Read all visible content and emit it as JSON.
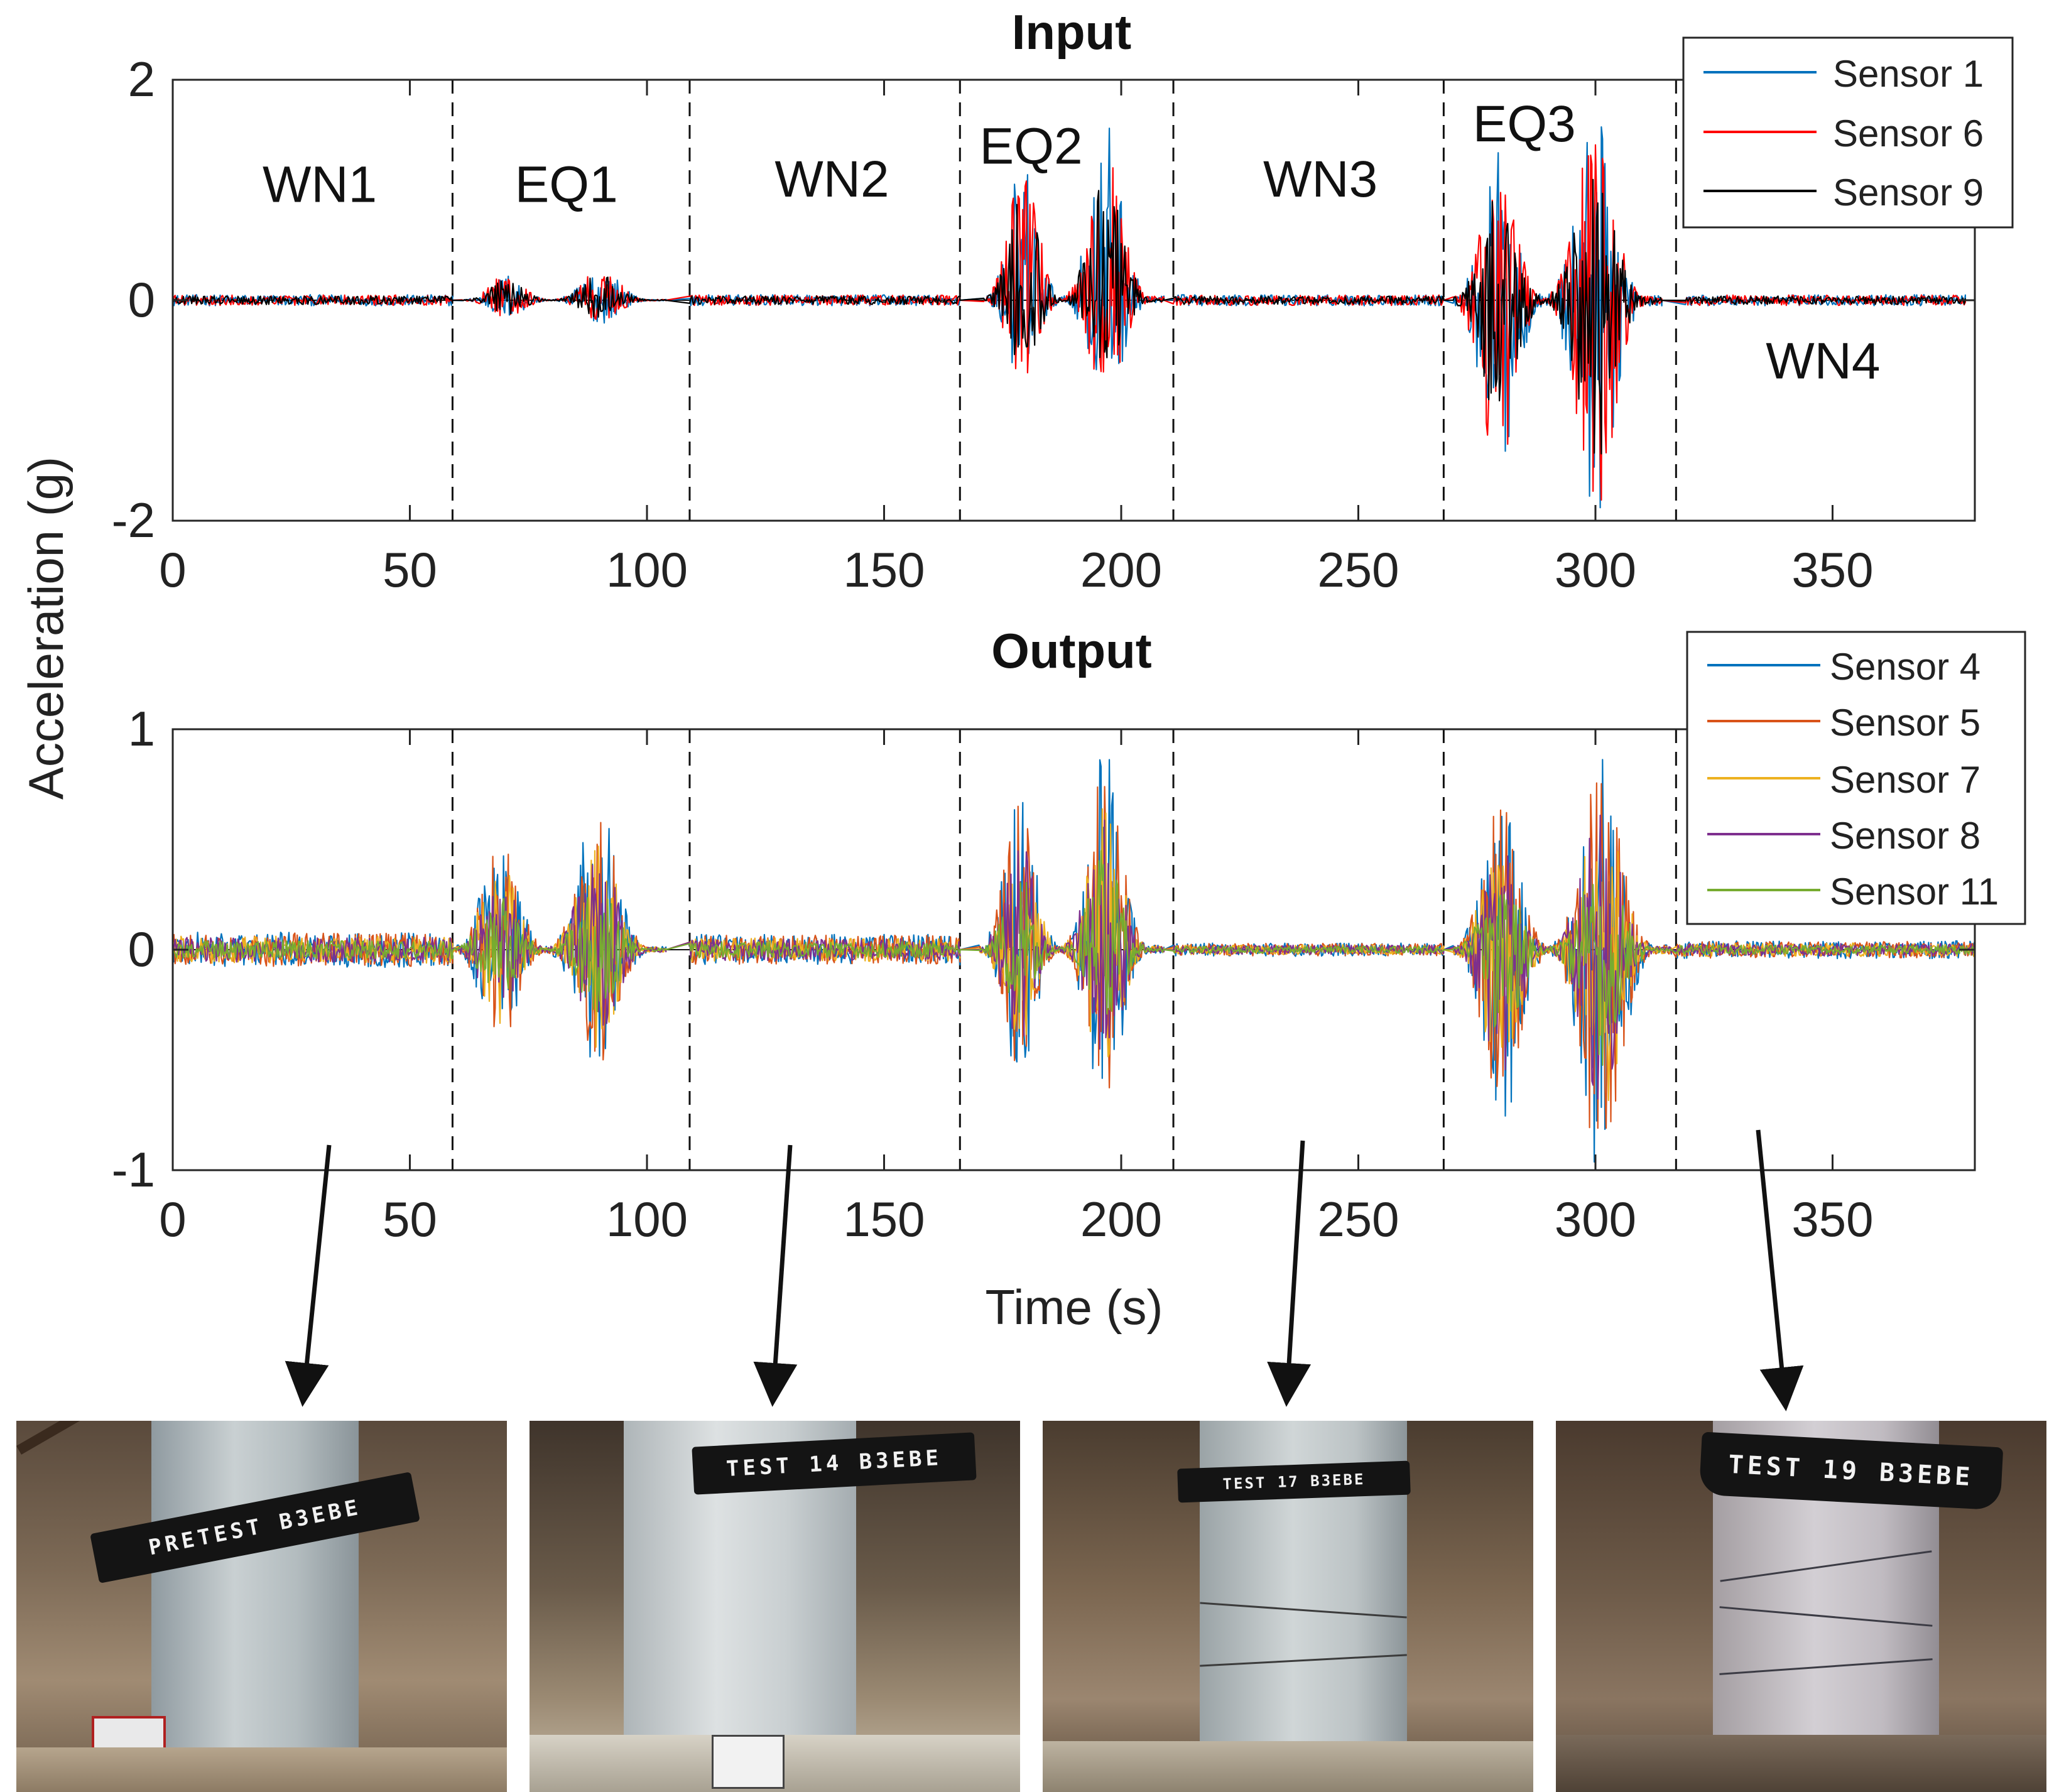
{
  "figure": {
    "shared_ylabel": "Acceleration (g)",
    "xlabel": "Time (s)"
  },
  "chart_data": [
    {
      "type": "line",
      "title": "Input",
      "xlabel": "",
      "ylabel": "Acceleration (g)",
      "xlim": [
        0,
        380
      ],
      "ylim": [
        -2,
        2
      ],
      "xticks": [
        0,
        50,
        100,
        150,
        200,
        250,
        300,
        350
      ],
      "yticks": [
        -2,
        0,
        2
      ],
      "grid": false,
      "legend_position": "top-right",
      "series": [
        {
          "name": "Sensor 1",
          "color": "#0072BD"
        },
        {
          "name": "Sensor 6",
          "color": "#FF0000"
        },
        {
          "name": "Sensor 9",
          "color": "#000000"
        }
      ],
      "stage_boundaries": [
        59,
        109,
        166,
        211,
        268,
        317
      ],
      "stage_labels": [
        {
          "label": "WN1",
          "x": 31,
          "y": 1.05
        },
        {
          "label": "EQ1",
          "x": 83,
          "y": 1.05
        },
        {
          "label": "WN2",
          "x": 139,
          "y": 1.1
        },
        {
          "label": "EQ2",
          "x": 181,
          "y": 1.4
        },
        {
          "label": "WN3",
          "x": 242,
          "y": 1.1
        },
        {
          "label": "EQ3",
          "x": 285,
          "y": 1.6
        },
        {
          "label": "WN4",
          "x": 348,
          "y": -0.55
        }
      ],
      "segments": [
        {
          "stage": "WN1",
          "t_start": 0,
          "t_end": 59,
          "peak_abs": 0.05
        },
        {
          "stage": "EQ1",
          "t_start": 61,
          "t_end": 104,
          "peak_pos": 0.3,
          "peak_neg": -0.2
        },
        {
          "stage": "WN2",
          "t_start": 109,
          "t_end": 166,
          "peak_abs": 0.05
        },
        {
          "stage": "EQ2",
          "t_start": 171,
          "t_end": 209,
          "peak_pos": 1.55,
          "peak_neg": -0.95
        },
        {
          "stage": "WN3",
          "t_start": 211,
          "t_end": 268,
          "peak_abs": 0.05
        },
        {
          "stage": "EQ3",
          "t_start": 270,
          "t_end": 314,
          "peak_pos": 1.6,
          "peak_neg": -2.0
        },
        {
          "stage": "WN4",
          "t_start": 319,
          "t_end": 378,
          "peak_abs": 0.05
        }
      ]
    },
    {
      "type": "line",
      "title": "Output",
      "xlabel": "Time (s)",
      "ylabel": "Acceleration (g)",
      "xlim": [
        0,
        380
      ],
      "ylim": [
        -1,
        1
      ],
      "xticks": [
        0,
        50,
        100,
        150,
        200,
        250,
        300,
        350
      ],
      "yticks": [
        -1,
        0,
        1
      ],
      "grid": false,
      "legend_position": "top-right",
      "series": [
        {
          "name": "Sensor 4",
          "color": "#0072BD"
        },
        {
          "name": "Sensor 5",
          "color": "#D95319"
        },
        {
          "name": "Sensor 7",
          "color": "#EDB120"
        },
        {
          "name": "Sensor 8",
          "color": "#7E2F8E"
        },
        {
          "name": "Sensor 11",
          "color": "#77AC30"
        }
      ],
      "stage_boundaries": [
        59,
        109,
        166,
        211,
        268,
        317
      ],
      "segments": [
        {
          "stage": "WN1",
          "t_start": 0,
          "t_end": 59,
          "peak_abs": 0.08
        },
        {
          "stage": "EQ1",
          "t_start": 59,
          "t_end": 104,
          "peak_pos": 0.65,
          "peak_neg": -0.55
        },
        {
          "stage": "WN2",
          "t_start": 109,
          "t_end": 166,
          "peak_abs": 0.07
        },
        {
          "stage": "EQ2",
          "t_start": 170,
          "t_end": 209,
          "peak_pos": 0.85,
          "peak_neg": -0.7
        },
        {
          "stage": "WN3",
          "t_start": 211,
          "t_end": 268,
          "peak_abs": 0.03
        },
        {
          "stage": "EQ3",
          "t_start": 270,
          "t_end": 316,
          "peak_pos": 0.85,
          "peak_neg": -1.0
        },
        {
          "stage": "WN4",
          "t_start": 317,
          "t_end": 380,
          "peak_abs": 0.04
        }
      ]
    }
  ],
  "photos": [
    {
      "label": "PRETEST B3EBE",
      "points_to_time": 33
    },
    {
      "label": "TEST 14 B3EBE",
      "points_to_time": 130
    },
    {
      "label": "TEST 17 B3EBE",
      "points_to_time": 238
    },
    {
      "label": "TEST 19 B3EBE",
      "points_to_time": 335
    }
  ]
}
